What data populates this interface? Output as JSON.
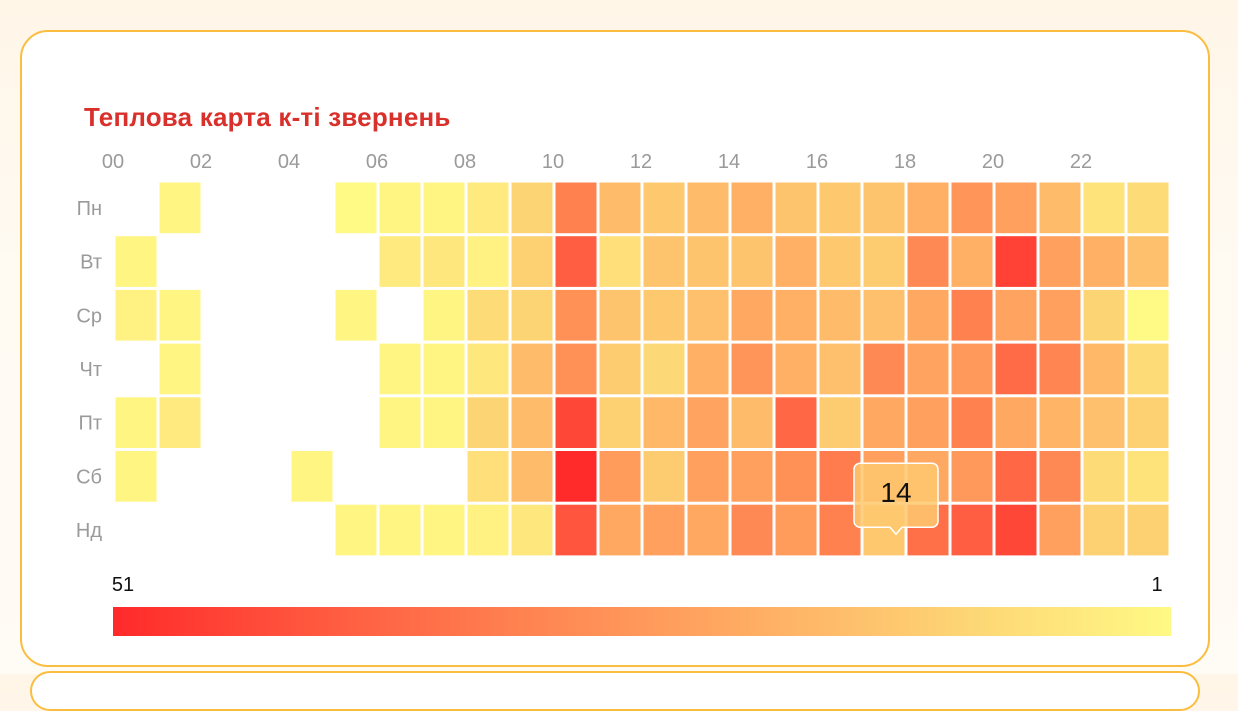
{
  "title": "Теплова карта к-ті звернень",
  "chart_data": {
    "type": "heatmap",
    "title": "Теплова карта к-ті звернень",
    "x_categories": [
      "00",
      "01",
      "02",
      "03",
      "04",
      "05",
      "06",
      "07",
      "08",
      "09",
      "10",
      "11",
      "12",
      "13",
      "14",
      "15",
      "16",
      "17",
      "18",
      "19",
      "20",
      "21",
      "22",
      "23"
    ],
    "x_tick_labels": [
      "00",
      "02",
      "04",
      "06",
      "08",
      "10",
      "12",
      "14",
      "16",
      "18",
      "20",
      "22"
    ],
    "y_categories": [
      "Пн",
      "Вт",
      "Ср",
      "Чт",
      "Пт",
      "Сб",
      "Нд"
    ],
    "values": [
      [
        null,
        2,
        null,
        null,
        null,
        1,
        2,
        2,
        5,
        11,
        32,
        17,
        14,
        17,
        20,
        15,
        14,
        15,
        20,
        27,
        24,
        17,
        7,
        9
      ],
      [
        2,
        null,
        null,
        null,
        null,
        null,
        5,
        6,
        3,
        12,
        40,
        8,
        15,
        15,
        15,
        20,
        14,
        13,
        30,
        20,
        46,
        24,
        20,
        16
      ],
      [
        3,
        2,
        null,
        null,
        null,
        2,
        null,
        2,
        9,
        11,
        28,
        15,
        14,
        16,
        22,
        20,
        17,
        16,
        22,
        32,
        23,
        24,
        11,
        1
      ],
      [
        null,
        2,
        null,
        null,
        null,
        null,
        2,
        2,
        6,
        17,
        28,
        13,
        10,
        20,
        27,
        20,
        16,
        30,
        23,
        26,
        37,
        31,
        18,
        9
      ],
      [
        2,
        5,
        null,
        null,
        null,
        null,
        2,
        2,
        11,
        17,
        45,
        12,
        18,
        23,
        17,
        38,
        13,
        22,
        24,
        32,
        22,
        19,
        16,
        12
      ],
      [
        2,
        null,
        null,
        null,
        2,
        null,
        null,
        null,
        8,
        17,
        51,
        25,
        13,
        24,
        24,
        28,
        33,
        24,
        22,
        26,
        38,
        30,
        9,
        7
      ],
      [
        null,
        null,
        null,
        null,
        null,
        2,
        2,
        2,
        3,
        6,
        42,
        22,
        24,
        22,
        30,
        25,
        32,
        14,
        36,
        40,
        45,
        24,
        12,
        12
      ]
    ],
    "visual_map": {
      "min": 1,
      "max": 51,
      "max_label": "51",
      "min_label": "1",
      "colors": [
        "#fff985",
        "#fdd474",
        "#ffac63",
        "#ff8552",
        "#ff5a40",
        "#ff2a2a"
      ]
    },
    "tooltip": {
      "day": "Нд",
      "hour": "17",
      "value": "14"
    }
  },
  "colors": {
    "title": "#d9302b",
    "card_border": "#fbbd3f",
    "axis_text": "#9a9a9a"
  }
}
